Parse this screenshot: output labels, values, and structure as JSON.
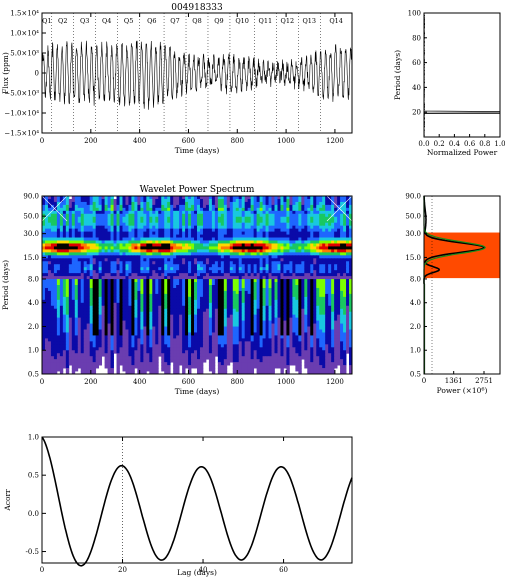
{
  "header": {
    "star_id": "004918333"
  },
  "chart_data": [
    {
      "id": "lightcurve",
      "type": "line",
      "title": "004918333",
      "xlabel": "Time (days)",
      "ylabel": "Flux (ppm)",
      "xlim": [
        0,
        1270
      ],
      "ylim": [
        -15000,
        15000
      ],
      "xticks": [
        0,
        200,
        400,
        600,
        800,
        1000,
        1200
      ],
      "yticks": [
        {
          "v": 15000,
          "t": "1.5×10⁴"
        },
        {
          "v": 10000,
          "t": "1.0×10⁴"
        },
        {
          "v": 5000,
          "t": "5.0×10³"
        },
        {
          "v": 0,
          "t": "0"
        },
        {
          "v": -5000,
          "t": "−5.0×10³"
        },
        {
          "v": -10000,
          "t": "−1.0×10⁴"
        },
        {
          "v": -15000,
          "t": "−1.5×10⁴"
        }
      ],
      "quarters": [
        {
          "label": "Q1",
          "x": 0
        },
        {
          "label": "Q2",
          "x": 40
        },
        {
          "label": "Q3",
          "x": 130
        },
        {
          "label": "Q4",
          "x": 220
        },
        {
          "label": "Q5",
          "x": 310
        },
        {
          "label": "Q6",
          "x": 400
        },
        {
          "label": "Q7",
          "x": 500
        },
        {
          "label": "Q8",
          "x": 590
        },
        {
          "label": "Q9",
          "x": 680
        },
        {
          "label": "Q10",
          "x": 770
        },
        {
          "label": "Q11",
          "x": 870
        },
        {
          "label": "Q12",
          "x": 960
        },
        {
          "label": "Q13",
          "x": 1050
        },
        {
          "label": "Q14",
          "x": 1140
        }
      ],
      "series_period_days": 20,
      "series_amplitude_ppm": 7000
    },
    {
      "id": "periodogram",
      "type": "line",
      "xlabel": "Normalized Power",
      "ylabel": "Period (days)",
      "xlim": [
        0,
        1
      ],
      "ylim": [
        0,
        100
      ],
      "xticks": [
        0,
        0.2,
        0.4,
        0.6,
        0.8,
        1.0
      ],
      "xticklabels": [
        "0.0",
        "0.2",
        "0.4",
        "0.6",
        "0.8",
        "1.0"
      ],
      "yticks": [
        20,
        40,
        60,
        80,
        100
      ],
      "peak_period_days": 20
    },
    {
      "id": "wavelet",
      "type": "heatmap",
      "title": "Wavelet Power Spectrum",
      "xlabel": "Time (days)",
      "ylabel": "Period (days)",
      "xlim": [
        0,
        1270
      ],
      "ylim_log": [
        0.5,
        90
      ],
      "xticks": [
        0,
        200,
        400,
        600,
        800,
        1000,
        1200
      ],
      "yticks": [
        {
          "v": 90,
          "t": "90.0"
        },
        {
          "v": 50,
          "t": "50.0"
        },
        {
          "v": 30,
          "t": "30.0"
        },
        {
          "v": 15,
          "t": "15.0"
        },
        {
          "v": 8,
          "t": "8.0"
        },
        {
          "v": 4,
          "t": "4.0"
        },
        {
          "v": 2,
          "t": "2.0"
        },
        {
          "v": 1,
          "t": "1.0"
        },
        {
          "v": 0.5,
          "t": "0.5"
        }
      ],
      "band_period_days": 20
    },
    {
      "id": "global_wavelet",
      "type": "line",
      "xlabel": "Power (×10⁶)",
      "xlim": [
        0,
        2751
      ],
      "xticks": [
        0,
        1361,
        2751
      ],
      "ylim_log": [
        0.5,
        90
      ],
      "yticks": [
        {
          "v": 90,
          "t": "90.0"
        },
        {
          "v": 50,
          "t": "50.0"
        },
        {
          "v": 30,
          "t": "30.0"
        },
        {
          "v": 15,
          "t": "15.0"
        },
        {
          "v": 8,
          "t": "8.0"
        },
        {
          "v": 4,
          "t": "4.0"
        },
        {
          "v": 2,
          "t": "2.0"
        },
        {
          "v": 1,
          "t": "1.0"
        },
        {
          "v": 0.5,
          "t": "0.5"
        }
      ],
      "highlight_band_days": [
        8.2,
        31
      ],
      "peak_period_days": 20,
      "peak_power": 2751,
      "colors": {
        "band": "#ff4a00",
        "fit": "#1a8c1a"
      }
    },
    {
      "id": "acf",
      "type": "line",
      "xlabel": "Lag (days)",
      "ylabel": "Acorr",
      "xlim": [
        0,
        77
      ],
      "ylim": [
        -0.65,
        1.0
      ],
      "xticks": [
        0,
        20,
        40,
        60
      ],
      "yticks": [
        {
          "v": 1.0,
          "t": "1.0"
        },
        {
          "v": 0.5,
          "t": "0.5"
        },
        {
          "v": 0.0,
          "t": "0.0"
        },
        {
          "v": -0.5,
          "t": "-0.5"
        }
      ],
      "period_days": 19.8,
      "marker_lag_days": 20
    }
  ]
}
